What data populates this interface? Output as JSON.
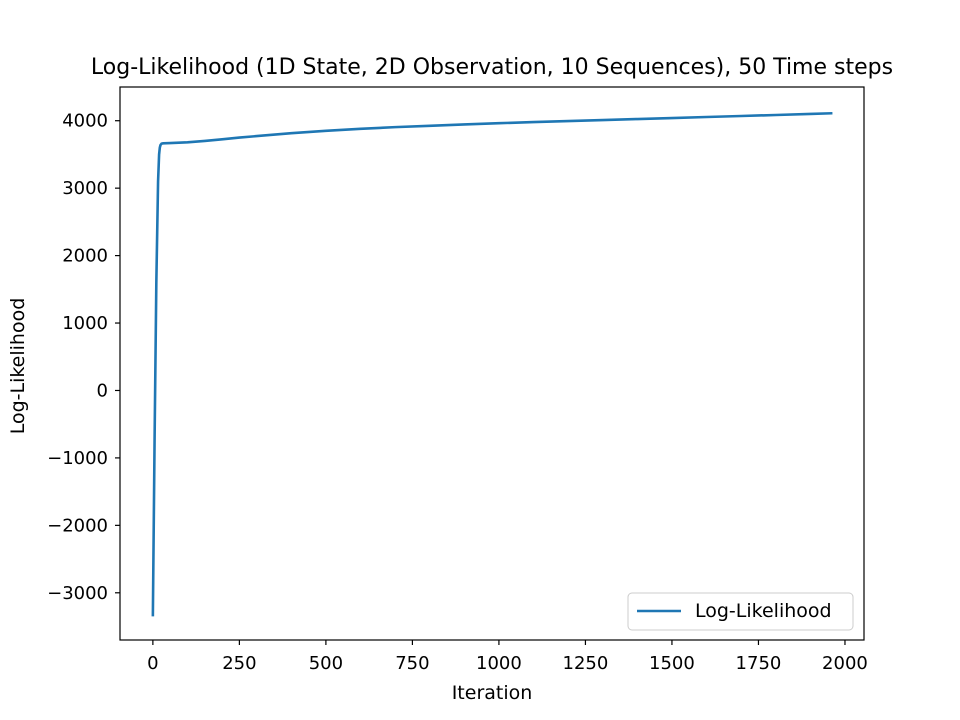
{
  "chart_data": {
    "type": "line",
    "title": "Log-Likelihood (1D State, 2D Observation, 10 Sequences), 50 Time steps",
    "xlabel": "Iteration",
    "ylabel": "Log-Likelihood",
    "xlim": [
      -95,
      2055
    ],
    "ylim": [
      -3700,
      4500
    ],
    "xticks": [
      0,
      250,
      500,
      750,
      1000,
      1250,
      1500,
      1750,
      2000
    ],
    "yticks": [
      -3000,
      -2000,
      -1000,
      0,
      1000,
      2000,
      3000,
      4000
    ],
    "xtick_labels": [
      "0",
      "250",
      "500",
      "750",
      "1000",
      "1250",
      "1500",
      "1750",
      "2000"
    ],
    "ytick_labels": [
      "−3000",
      "−2000",
      "−1000",
      "0",
      "1000",
      "2000",
      "3000",
      "4000"
    ],
    "grid": false,
    "legend_position": "lower-right",
    "series": [
      {
        "name": "Log-Likelihood",
        "color": "#1f77b4",
        "x": [
          0,
          5,
          10,
          15,
          18,
          20,
          22,
          25,
          30,
          50,
          100,
          150,
          200,
          250,
          300,
          400,
          500,
          600,
          700,
          800,
          900,
          1000,
          1100,
          1200,
          1300,
          1400,
          1500,
          1600,
          1700,
          1800,
          1900,
          1960
        ],
        "y": [
          -3330,
          -700,
          1600,
          3100,
          3500,
          3600,
          3640,
          3660,
          3665,
          3668,
          3680,
          3700,
          3725,
          3750,
          3772,
          3815,
          3850,
          3880,
          3905,
          3925,
          3945,
          3963,
          3980,
          3995,
          4010,
          4025,
          4040,
          4055,
          4070,
          4085,
          4100,
          4110
        ]
      }
    ]
  }
}
